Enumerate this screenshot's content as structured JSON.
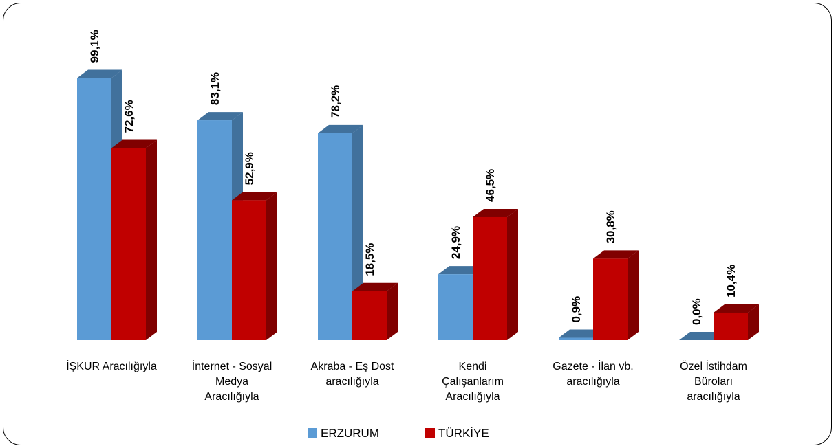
{
  "chart_data": {
    "type": "bar",
    "style": "3d-clustered-column",
    "categories": [
      [
        "İŞKUR Aracılığıyla"
      ],
      [
        "İnternet - Sosyal",
        "Medya",
        "Aracılığıyla"
      ],
      [
        "Akraba - Eş Dost",
        "aracılığıyla"
      ],
      [
        "Kendi",
        "Çalışanlarım",
        "Aracılığıyla"
      ],
      [
        "Gazete - İlan vb.",
        "aracılığıyla"
      ],
      [
        "Özel İstihdam",
        "Büroları",
        "aracılığıyla"
      ]
    ],
    "series": [
      {
        "name": "ERZURUM",
        "color": "#5B9BD5",
        "side_color": "#41719C",
        "values": [
          99.1,
          83.1,
          78.2,
          24.9,
          0.9,
          0.0
        ],
        "labels": [
          "99,1%",
          "83,1%",
          "78,2%",
          "24,9%",
          "0,9%",
          "0,0%"
        ]
      },
      {
        "name": "TÜRKİYE",
        "color": "#C00000",
        "side_color": "#800000",
        "values": [
          72.6,
          52.9,
          18.5,
          46.5,
          30.8,
          10.4
        ],
        "labels": [
          "72,6%",
          "52,9%",
          "18,5%",
          "46,5%",
          "30,8%",
          "10,4%"
        ]
      }
    ],
    "ylim": [
      0,
      100
    ],
    "unit": "%",
    "grid": false,
    "legend_position": "bottom",
    "data_label_rotation": "vertical"
  }
}
